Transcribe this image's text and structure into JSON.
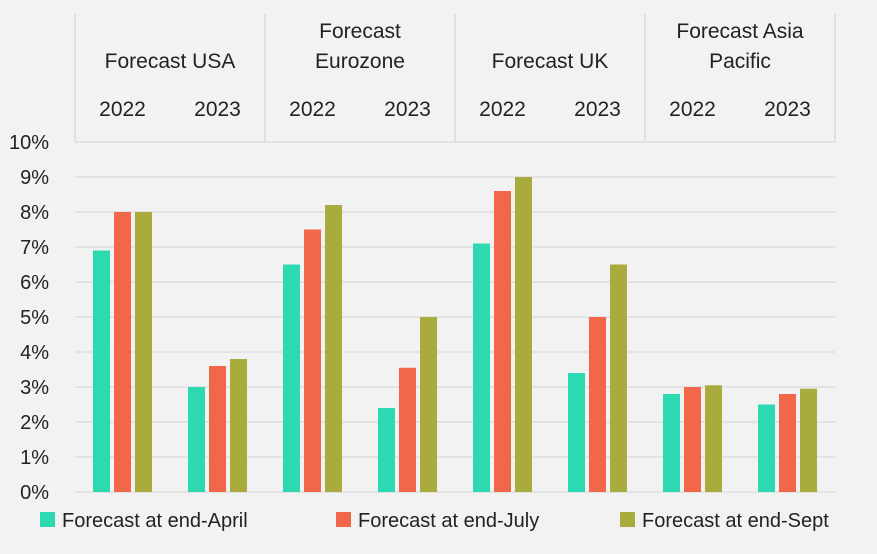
{
  "chart_data": {
    "type": "bar",
    "groups": [
      {
        "label_lines": [
          "Forecast USA"
        ],
        "categories": [
          "2022",
          "2023"
        ]
      },
      {
        "label_lines": [
          "Forecast",
          "Eurozone"
        ],
        "categories": [
          "2022",
          "2023"
        ]
      },
      {
        "label_lines": [
          "Forecast UK"
        ],
        "categories": [
          "2022",
          "2023"
        ]
      },
      {
        "label_lines": [
          "Forecast Asia",
          "Pacific"
        ],
        "categories": [
          "2022",
          "2023"
        ]
      }
    ],
    "categories": [
      "Forecast USA 2022",
      "Forecast USA 2023",
      "Forecast Eurozone 2022",
      "Forecast Eurozone 2023",
      "Forecast UK 2022",
      "Forecast UK 2023",
      "Forecast Asia Pacific 2022",
      "Forecast Asia Pacific 2023"
    ],
    "series": [
      {
        "name": "Forecast at end-April",
        "color": "#2dd9b0",
        "values": [
          6.9,
          3.0,
          6.5,
          2.4,
          7.1,
          3.4,
          2.8,
          2.5
        ]
      },
      {
        "name": "Forecast at end-July",
        "color": "#f2674a",
        "values": [
          8.0,
          3.6,
          7.5,
          3.55,
          8.6,
          5.0,
          3.0,
          2.8
        ]
      },
      {
        "name": "Forecast at end-Sept",
        "color": "#a9ab3c",
        "values": [
          8.0,
          3.8,
          8.2,
          5.0,
          9.0,
          6.5,
          3.05,
          2.95
        ]
      }
    ],
    "yticks": [
      "0%",
      "1%",
      "2%",
      "3%",
      "4%",
      "5%",
      "6%",
      "7%",
      "8%",
      "9%",
      "10%"
    ],
    "ylim": [
      0,
      10
    ],
    "grid": true,
    "legend_position": "bottom"
  }
}
